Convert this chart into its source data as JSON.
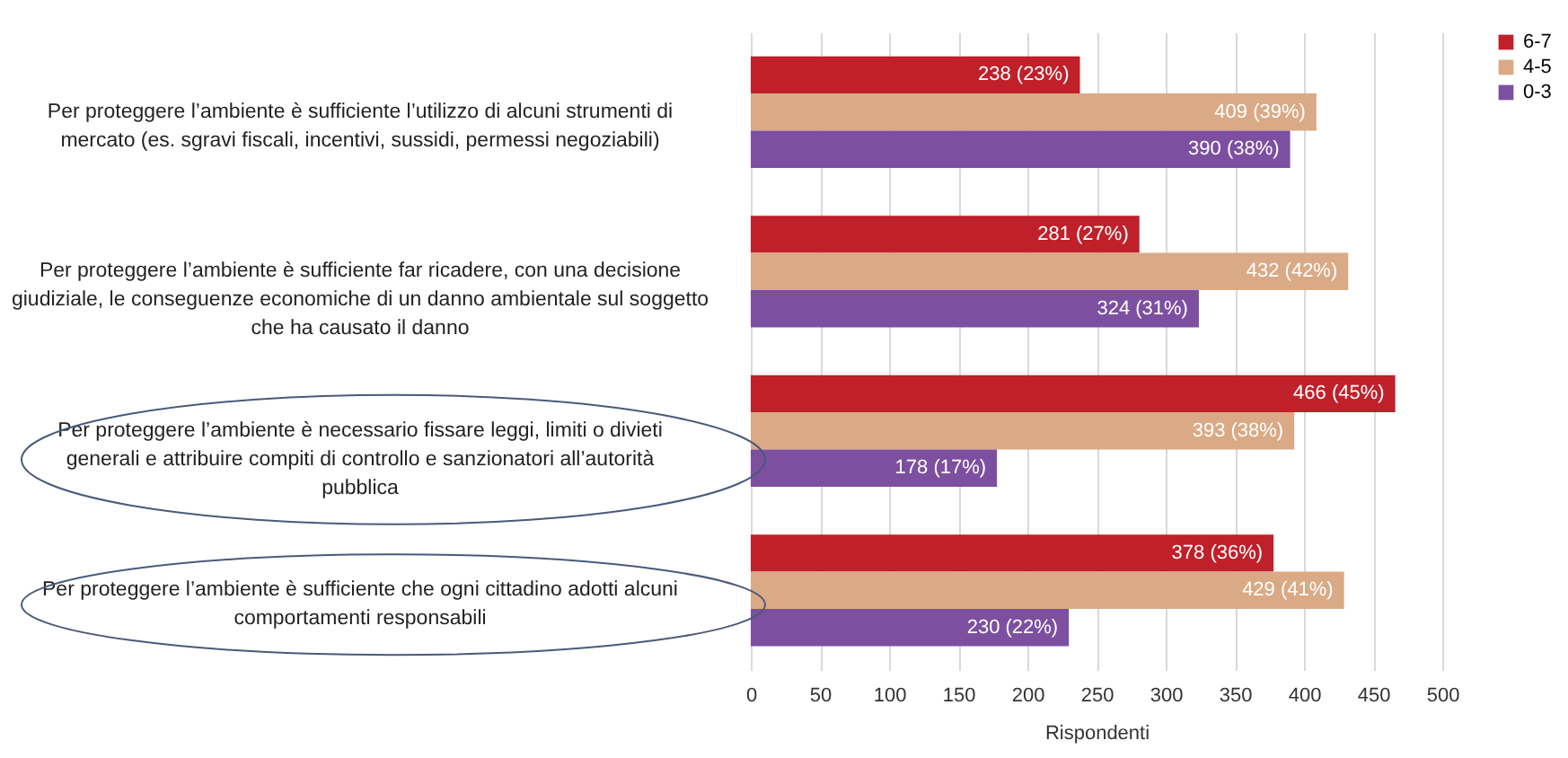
{
  "chart_data": {
    "type": "bar",
    "orientation": "horizontal",
    "categories": [
      "Per proteggere l’ambiente è sufficiente l’utilizzo di alcuni strumenti di mercato (es. sgravi fiscali, incentivi, sussidi, permessi negoziabili)",
      "Per proteggere l’ambiente è sufficiente far ricadere, con una decisione giudiziale, le conseguenze economiche di un danno ambientale sul soggetto che ha causato il danno",
      "Per proteggere l’ambiente è necessario fissare leggi, limiti o divieti generali e attribuire compiti di controllo e sanzionatori all’autorità pubblica",
      "Per proteggere l’ambiente è sufficiente che ogni cittadino adotti alcuni comportamenti responsabili"
    ],
    "series": [
      {
        "name": "6-7",
        "color": "#c0202a",
        "values": [
          238,
          281,
          466,
          378
        ],
        "value_labels": [
          "238 (23%)",
          "281 (27%)",
          "466 (45%)",
          "378 (36%)"
        ]
      },
      {
        "name": "4-5",
        "color": "#d9aa85",
        "values": [
          409,
          432,
          393,
          429
        ],
        "value_labels": [
          "409 (39%)",
          "432 (42%)",
          "393 (38%)",
          "429 (41%)"
        ]
      },
      {
        "name": "0-3",
        "color": "#7d4fa0",
        "values": [
          390,
          324,
          178,
          230
        ],
        "value_labels": [
          "390 (38%)",
          "324 (31%)",
          "178 (17%)",
          "230 (22%)"
        ]
      }
    ],
    "xlabel": "Rispondenti",
    "xlim": [
      0,
      500
    ],
    "xticks": [
      0,
      50,
      100,
      150,
      200,
      250,
      300,
      350,
      400,
      450,
      500
    ],
    "grid": "x",
    "legend": "right"
  }
}
